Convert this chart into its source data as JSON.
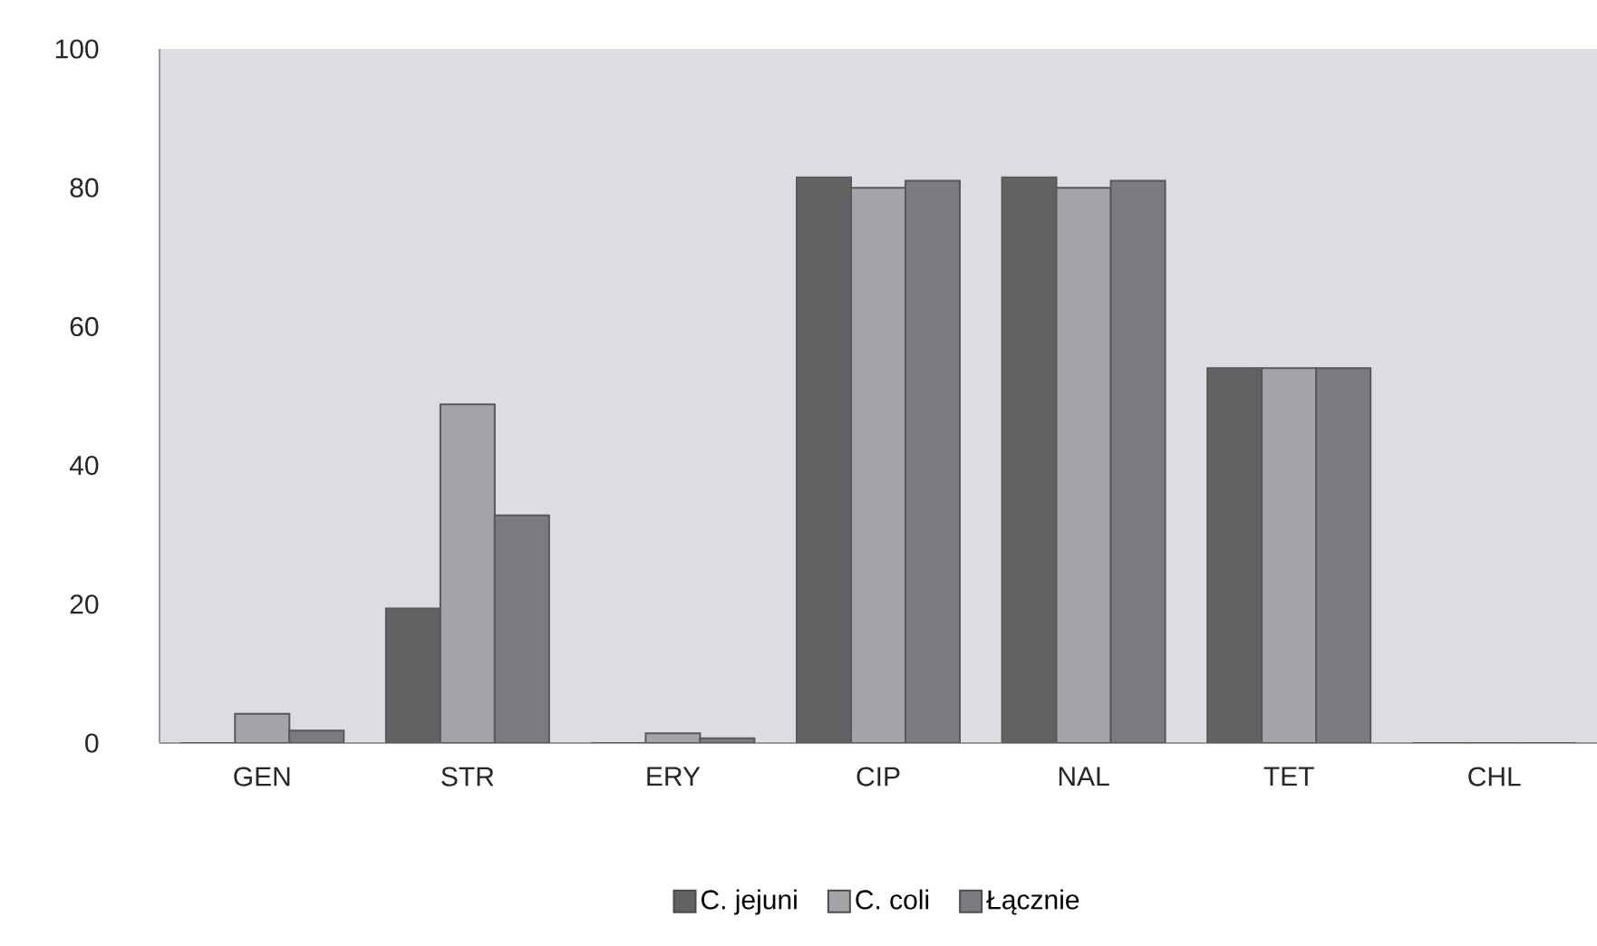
{
  "chart_data": {
    "type": "bar",
    "categories": [
      "GEN",
      "STR",
      "ERY",
      "CIP",
      "NAL",
      "TET",
      "CHL"
    ],
    "series": [
      {
        "name": "C. jejuni",
        "color": "#626264",
        "values": [
          0,
          19.4,
          0,
          81.5,
          81.5,
          54,
          0
        ]
      },
      {
        "name": "C. coli",
        "color": "#a4a5a8",
        "values": [
          4.2,
          48.8,
          1.4,
          80,
          80,
          54,
          0
        ]
      },
      {
        "name": "Łącznie",
        "color": "#7a7b7e",
        "values": [
          1.8,
          32.8,
          0.7,
          81,
          81,
          54,
          0
        ]
      }
    ],
    "ylim": [
      0,
      100
    ],
    "yticks": [
      0,
      20,
      40,
      60,
      80,
      100
    ],
    "grid": false,
    "legend": "bottom"
  }
}
